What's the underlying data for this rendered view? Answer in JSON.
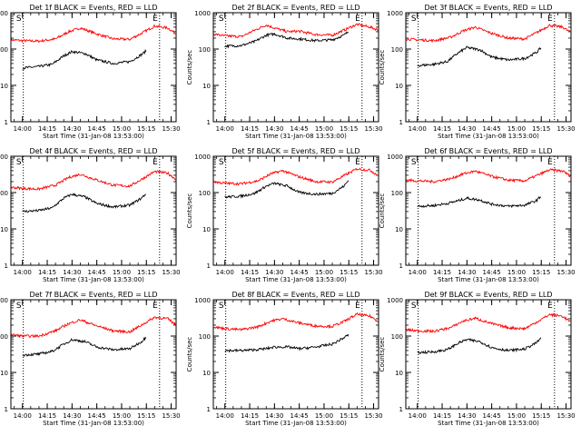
{
  "chart_data": [
    {
      "type": "line",
      "title": "Det 1f BLACK = Events, RED = LLD",
      "xlabel": "Start Time (31-Jan-08 13:53:00)",
      "ylabel": "Counts/sec",
      "yscale": "log",
      "ylim": [
        1,
        1000
      ],
      "x_ticks": [
        "14:00",
        "14:15",
        "14:30",
        "14:45",
        "15:00",
        "15:15",
        "15:30"
      ],
      "y_ticks": [
        "1",
        "10",
        "100",
        "1000"
      ],
      "markers": [
        "S",
        "E"
      ],
      "series": [
        {
          "color": "#ff0000",
          "x": [
            "13:53",
            "14:00",
            "14:10",
            "14:20",
            "14:28",
            "14:35",
            "14:45",
            "14:55",
            "15:05",
            "15:12",
            "15:20",
            "15:28",
            "15:33"
          ],
          "values": [
            180,
            170,
            165,
            190,
            300,
            380,
            260,
            190,
            185,
            270,
            430,
            380,
            260
          ]
        },
        {
          "color": "#000000",
          "x": [
            "14:00",
            "14:10",
            "14:18",
            "14:25",
            "14:30",
            "14:38",
            "14:45",
            "14:55",
            "15:05",
            "15:12",
            "15:15"
          ],
          "values": [
            30,
            33,
            38,
            65,
            85,
            75,
            50,
            40,
            45,
            70,
            90
          ]
        }
      ]
    },
    {
      "type": "line",
      "title": "Det 2f BLACK = Events, RED = LLD",
      "xlabel": "Start Time (31-Jan-08 13:53:00)",
      "ylabel": "Counts/sec",
      "yscale": "log",
      "ylim": [
        1,
        1000
      ],
      "x_ticks": [
        "14:00",
        "14:15",
        "14:30",
        "14:45",
        "15:00",
        "15:15",
        "15:30"
      ],
      "y_ticks": [
        "1",
        "10",
        "100",
        "1000"
      ],
      "markers": [
        "S",
        "E"
      ],
      "series": [
        {
          "color": "#ff0000",
          "x": [
            "13:53",
            "14:00",
            "14:10",
            "14:18",
            "14:25",
            "14:30",
            "14:38",
            "14:45",
            "14:55",
            "15:05",
            "15:12",
            "15:20",
            "15:28",
            "15:33"
          ],
          "values": [
            260,
            230,
            220,
            330,
            460,
            380,
            300,
            310,
            250,
            240,
            330,
            480,
            400,
            330
          ]
        },
        {
          "color": "#000000",
          "x": [
            "14:00",
            "14:10",
            "14:18",
            "14:25",
            "14:30",
            "14:38",
            "14:45",
            "14:55",
            "15:05",
            "15:12",
            "15:15"
          ],
          "values": [
            120,
            125,
            160,
            240,
            260,
            200,
            190,
            170,
            180,
            240,
            310
          ]
        }
      ]
    },
    {
      "type": "line",
      "title": "Det 3f BLACK = Events, RED = LLD",
      "xlabel": "Start Time (31-Jan-08 13:53:00)",
      "ylabel": "Counts/sec",
      "yscale": "log",
      "ylim": [
        1,
        1000
      ],
      "x_ticks": [
        "14:00",
        "14:15",
        "14:30",
        "14:45",
        "15:00",
        "15:15",
        "15:30"
      ],
      "y_ticks": [
        "1",
        "10",
        "100",
        "1000"
      ],
      "markers": [
        "S",
        "E"
      ],
      "series": [
        {
          "color": "#ff0000",
          "x": [
            "13:53",
            "14:00",
            "14:10",
            "14:20",
            "14:28",
            "14:35",
            "14:45",
            "14:55",
            "15:05",
            "15:12",
            "15:20",
            "15:28",
            "15:33"
          ],
          "values": [
            190,
            180,
            170,
            210,
            320,
            400,
            270,
            200,
            190,
            280,
            450,
            400,
            280
          ]
        },
        {
          "color": "#000000",
          "x": [
            "14:00",
            "14:10",
            "14:18",
            "14:25",
            "14:30",
            "14:38",
            "14:45",
            "14:55",
            "15:05",
            "15:12",
            "15:15"
          ],
          "values": [
            35,
            38,
            45,
            80,
            110,
            95,
            60,
            50,
            55,
            80,
            110
          ]
        }
      ]
    },
    {
      "type": "line",
      "title": "Det 4f BLACK = Events, RED = LLD",
      "xlabel": "Start Time (31-Jan-08 13:53:00)",
      "ylabel": "Counts/sec",
      "yscale": "log",
      "ylim": [
        1,
        1000
      ],
      "x_ticks": [
        "14:00",
        "14:15",
        "14:30",
        "14:45",
        "15:00",
        "15:15",
        "15:30"
      ],
      "y_ticks": [
        "1",
        "10",
        "100",
        "1000"
      ],
      "markers": [
        "S",
        "E"
      ],
      "series": [
        {
          "color": "#ff0000",
          "x": [
            "13:53",
            "14:00",
            "14:10",
            "14:20",
            "14:28",
            "14:35",
            "14:45",
            "14:55",
            "15:05",
            "15:12",
            "15:20",
            "15:28",
            "15:33"
          ],
          "values": [
            140,
            130,
            125,
            160,
            260,
            320,
            220,
            160,
            150,
            230,
            380,
            340,
            230
          ]
        },
        {
          "color": "#000000",
          "x": [
            "14:00",
            "14:10",
            "14:18",
            "14:25",
            "14:30",
            "14:38",
            "14:45",
            "14:55",
            "15:05",
            "15:12",
            "15:15"
          ],
          "values": [
            30,
            32,
            38,
            70,
            90,
            75,
            50,
            40,
            45,
            70,
            95
          ]
        }
      ]
    },
    {
      "type": "line",
      "title": "Det 5f BLACK = Events, RED = LLD",
      "xlabel": "Start Time (31-Jan-08 13:53:00)",
      "ylabel": "Counts/sec",
      "yscale": "log",
      "ylim": [
        1,
        1000
      ],
      "x_ticks": [
        "14:00",
        "14:15",
        "14:30",
        "14:45",
        "15:00",
        "15:15",
        "15:30"
      ],
      "y_ticks": [
        "1",
        "10",
        "100",
        "1000"
      ],
      "markers": [
        "S",
        "E"
      ],
      "series": [
        {
          "color": "#ff0000",
          "x": [
            "13:53",
            "14:00",
            "14:10",
            "14:20",
            "14:28",
            "14:35",
            "14:45",
            "14:55",
            "15:05",
            "15:12",
            "15:20",
            "15:28",
            "15:33"
          ],
          "values": [
            200,
            180,
            175,
            210,
            330,
            400,
            270,
            200,
            195,
            290,
            450,
            410,
            290
          ]
        },
        {
          "color": "#000000",
          "x": [
            "14:00",
            "14:10",
            "14:18",
            "14:25",
            "14:30",
            "14:38",
            "14:45",
            "14:55",
            "15:05",
            "15:12",
            "15:15"
          ],
          "values": [
            75,
            80,
            95,
            150,
            180,
            150,
            100,
            90,
            95,
            150,
            220
          ]
        }
      ]
    },
    {
      "type": "line",
      "title": "Det 6f BLACK = Events, RED = LLD",
      "xlabel": "Start Time (31-Jan-08 13:53:00)",
      "ylabel": "Counts/sec",
      "yscale": "log",
      "ylim": [
        1,
        1000
      ],
      "x_ticks": [
        "14:00",
        "14:15",
        "14:30",
        "14:45",
        "15:00",
        "15:15",
        "15:30"
      ],
      "y_ticks": [
        "1",
        "10",
        "100",
        "1000"
      ],
      "markers": [
        "S",
        "E"
      ],
      "series": [
        {
          "color": "#ff0000",
          "x": [
            "13:53",
            "14:00",
            "14:10",
            "14:20",
            "14:28",
            "14:35",
            "14:45",
            "14:55",
            "15:05",
            "15:12",
            "15:20",
            "15:28",
            "15:33"
          ],
          "values": [
            220,
            210,
            200,
            240,
            330,
            390,
            280,
            220,
            210,
            290,
            420,
            390,
            280
          ]
        },
        {
          "color": "#000000",
          "x": [
            "14:00",
            "14:10",
            "14:18",
            "14:25",
            "14:30",
            "14:38",
            "14:45",
            "14:55",
            "15:05",
            "15:12",
            "15:15"
          ],
          "values": [
            42,
            44,
            50,
            60,
            70,
            62,
            48,
            42,
            45,
            60,
            80
          ]
        }
      ]
    },
    {
      "type": "line",
      "title": "Det 7f BLACK = Events, RED = LLD",
      "xlabel": "Start Time (31-Jan-08 13:53:00)",
      "ylabel": "Counts/sec",
      "yscale": "log",
      "ylim": [
        1,
        1000
      ],
      "x_ticks": [
        "14:00",
        "14:15",
        "14:30",
        "14:45",
        "15:00",
        "15:15",
        "15:30"
      ],
      "y_ticks": [
        "1",
        "10",
        "100",
        "1000"
      ],
      "markers": [
        "S",
        "E"
      ],
      "series": [
        {
          "color": "#ff0000",
          "x": [
            "13:53",
            "14:00",
            "14:10",
            "14:20",
            "14:28",
            "14:35",
            "14:45",
            "14:55",
            "15:05",
            "15:12",
            "15:20",
            "15:28",
            "15:33"
          ],
          "values": [
            110,
            100,
            100,
            140,
            220,
            280,
            190,
            140,
            130,
            200,
            330,
            300,
            200
          ]
        },
        {
          "color": "#000000",
          "x": [
            "14:00",
            "14:10",
            "14:18",
            "14:25",
            "14:30",
            "14:38",
            "14:45",
            "14:55",
            "15:05",
            "15:12",
            "15:15"
          ],
          "values": [
            30,
            32,
            38,
            60,
            80,
            70,
            50,
            42,
            45,
            70,
            95
          ]
        }
      ]
    },
    {
      "type": "line",
      "title": "Det 8f BLACK = Events, RED = LLD",
      "xlabel": "Start Time (31-Jan-08 13:53:00)",
      "ylabel": "Counts/sec",
      "yscale": "log",
      "ylim": [
        1,
        1000
      ],
      "x_ticks": [
        "14:00",
        "14:15",
        "14:30",
        "14:45",
        "15:00",
        "15:15",
        "15:30"
      ],
      "y_ticks": [
        "1",
        "10",
        "100",
        "1000"
      ],
      "markers": [
        "S",
        "E"
      ],
      "series": [
        {
          "color": "#ff0000",
          "x": [
            "13:53",
            "14:00",
            "14:10",
            "14:20",
            "14:28",
            "14:35",
            "14:45",
            "14:55",
            "15:05",
            "15:12",
            "15:20",
            "15:28",
            "15:33"
          ],
          "values": [
            180,
            160,
            150,
            180,
            260,
            300,
            230,
            190,
            185,
            250,
            400,
            350,
            250
          ]
        },
        {
          "color": "#000000",
          "x": [
            "14:00",
            "14:10",
            "14:18",
            "14:25",
            "14:30",
            "14:38",
            "14:45",
            "14:55",
            "15:05",
            "15:12",
            "15:15"
          ],
          "values": [
            40,
            40,
            42,
            45,
            50,
            50,
            45,
            50,
            60,
            90,
            110
          ]
        }
      ]
    },
    {
      "type": "line",
      "title": "Det 9f BLACK = Events, RED = LLD",
      "xlabel": "Start Time (31-Jan-08 13:53:00)",
      "ylabel": "Counts/sec",
      "yscale": "log",
      "ylim": [
        1,
        1000
      ],
      "x_ticks": [
        "14:00",
        "14:15",
        "14:30",
        "14:45",
        "15:00",
        "15:15",
        "15:30"
      ],
      "y_ticks": [
        "1",
        "10",
        "100",
        "1000"
      ],
      "markers": [
        "S",
        "E"
      ],
      "series": [
        {
          "color": "#ff0000",
          "x": [
            "13:53",
            "14:00",
            "14:10",
            "14:20",
            "14:28",
            "14:35",
            "14:45",
            "14:55",
            "15:05",
            "15:12",
            "15:20",
            "15:28",
            "15:33"
          ],
          "values": [
            150,
            140,
            135,
            170,
            260,
            310,
            220,
            170,
            160,
            240,
            390,
            350,
            240
          ]
        },
        {
          "color": "#000000",
          "x": [
            "14:00",
            "14:10",
            "14:18",
            "14:25",
            "14:30",
            "14:38",
            "14:45",
            "14:55",
            "15:05",
            "15:12",
            "15:15"
          ],
          "values": [
            35,
            37,
            42,
            65,
            80,
            70,
            48,
            40,
            44,
            65,
            90
          ]
        }
      ]
    }
  ]
}
